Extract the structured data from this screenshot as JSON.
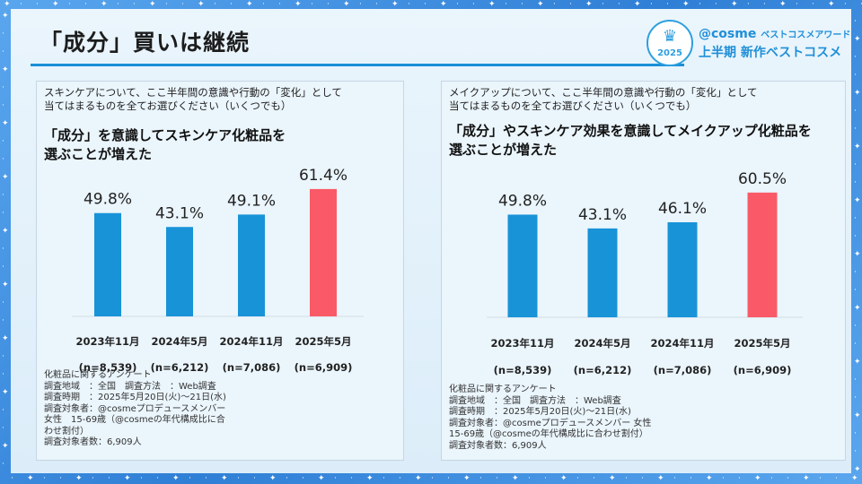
{
  "page": {
    "title": "「成分」買いは継続",
    "brand": {
      "badge_year": "2025",
      "brand_name": "@cosme",
      "award_name": "ベストコスメアワード",
      "award_sub": "上半期 新作ベストコスメ"
    }
  },
  "colors": {
    "bar_normal": "#1893d8",
    "bar_highlight": "#fa5a68",
    "accent": "#1b8fd6"
  },
  "chart_data": [
    {
      "type": "bar",
      "question": [
        "スキンケアについて、ここ半年間の意識や行動の「変化」として",
        "当てはまるものを全てお選びください（いくつでも）"
      ],
      "title": [
        "「成分」を意識してスキンケア化粧品を",
        "選ぶことが増えた"
      ],
      "categories": [
        "2023年11月",
        "2024年5月",
        "2024年11月",
        "2025年5月"
      ],
      "sample_sizes": [
        "(n=8,539)",
        "(n=6,212)",
        "(n=7,086)",
        "(n=6,909)"
      ],
      "values": [
        49.8,
        43.1,
        49.1,
        61.4
      ],
      "value_labels": [
        "49.8%",
        "43.1%",
        "49.1%",
        "61.4%"
      ],
      "highlight_index": 3,
      "ylim": [
        0,
        70
      ],
      "notes": [
        "化粧品に関するアンケート",
        "調査地域　：全国　調査方法　：Web調査",
        "調査時期　：2025年5月20日(火)～21日(水)",
        "調査対象者：@cosmeプロデュースメンバー",
        "女性　15-69歳（@cosmeの年代構成比に合",
        "わせ割付）",
        "調査対象者数：6,909人"
      ]
    },
    {
      "type": "bar",
      "question": [
        "メイクアップについて、ここ半年間の意識や行動の「変化」として",
        "当てはまるものを全てお選びください（いくつでも）"
      ],
      "title": [
        "「成分」やスキンケア効果を意識してメイクアップ化粧品を",
        "選ぶことが増えた"
      ],
      "categories": [
        "2023年11月",
        "2024年5月",
        "2024年11月",
        "2025年5月"
      ],
      "sample_sizes": [
        "(n=8,539)",
        "(n=6,212)",
        "(n=7,086)",
        "(n=6,909)"
      ],
      "values": [
        49.8,
        43.1,
        46.1,
        60.5
      ],
      "value_labels": [
        "49.8%",
        "43.1%",
        "46.1%",
        "60.5%"
      ],
      "highlight_index": 3,
      "ylim": [
        0,
        70
      ],
      "notes": [
        "化粧品に関するアンケート",
        "調査地域　：全国　調査方法　：Web調査",
        "調査時期　：2025年5月20日(火)～21日(水)",
        "調査対象者：@cosmeプロデュースメンバー 女性",
        "15-69歳（@cosmeの年代構成比に合わせ割付）",
        "調査対象者数：6,909人"
      ]
    }
  ]
}
